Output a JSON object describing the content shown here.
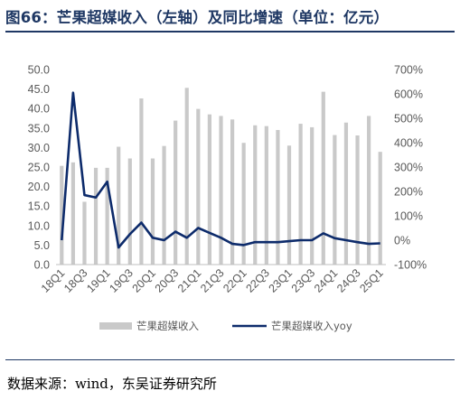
{
  "title": "图66：芒果超媒收入（左轴）及同比增速（单位：亿元）",
  "source": "数据来源：wind，东吴证券研究所",
  "colors": {
    "bar": "#c9c9c9",
    "line": "#0d2b6b",
    "title": "#1f3864",
    "text": "#595959"
  },
  "chart_data": {
    "type": "bar",
    "categories": [
      "18Q1",
      "18Q2",
      "18Q3",
      "18Q4",
      "19Q1",
      "19Q2",
      "19Q3",
      "19Q4",
      "20Q1",
      "20Q2",
      "20Q3",
      "20Q4",
      "21Q1",
      "21Q2",
      "21Q3",
      "21Q4",
      "22Q1",
      "22Q2",
      "22Q3",
      "22Q4",
      "23Q1",
      "23Q2",
      "23Q3",
      "23Q4",
      "24Q1",
      "24Q2",
      "24Q3",
      "24Q4",
      "25Q1"
    ],
    "x_tick_labels": [
      "18Q1",
      "18Q3",
      "19Q1",
      "19Q3",
      "20Q1",
      "20Q3",
      "21Q1",
      "21Q3",
      "22Q1",
      "22Q3",
      "23Q1",
      "23Q3",
      "24Q1",
      "24Q3",
      "25Q1"
    ],
    "series": [
      {
        "name": "芒果超媒收入",
        "type": "bar",
        "axis": "left",
        "values": [
          25.3,
          26.2,
          16.1,
          24.8,
          24.8,
          30.2,
          27.2,
          42.6,
          27.2,
          30.4,
          36.9,
          45.3,
          39.9,
          38.5,
          38.1,
          37.2,
          31.2,
          35.7,
          35.5,
          34.5,
          30.5,
          36.1,
          35.2,
          44.3,
          33.2,
          36.4,
          33.1,
          38.1,
          28.9
        ]
      },
      {
        "name": "芒果超媒收入yoy",
        "type": "line",
        "axis": "right",
        "values": [
          0,
          605,
          185,
          175,
          240,
          -30,
          25,
          72,
          10,
          0,
          35,
          10,
          50,
          30,
          10,
          -15,
          -20,
          -8,
          -8,
          -8,
          -4,
          0,
          0,
          28,
          8,
          0,
          -8,
          -15,
          -13
        ]
      }
    ],
    "y_left": {
      "ticks": [
        "0.0",
        "5.0",
        "10.0",
        "15.0",
        "20.0",
        "25.0",
        "30.0",
        "35.0",
        "40.0",
        "45.0",
        "50.0"
      ],
      "lim": [
        0,
        50
      ]
    },
    "y_right": {
      "ticks": [
        "-100%",
        "0%",
        "100%",
        "200%",
        "300%",
        "400%",
        "500%",
        "600%",
        "700%"
      ],
      "lim": [
        -100,
        700
      ]
    },
    "legend": {
      "placement": "bottom",
      "entries": [
        "芒果超媒收入",
        "芒果超媒收入yoy"
      ]
    },
    "grid": false
  }
}
